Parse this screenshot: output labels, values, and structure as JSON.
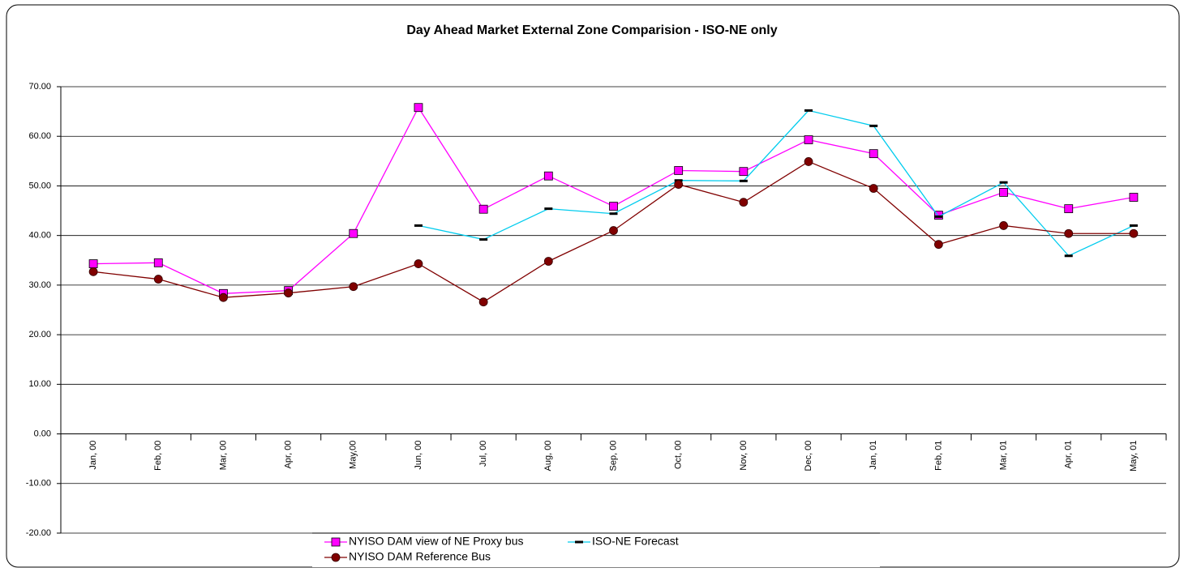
{
  "chart_data": {
    "type": "line",
    "title": "Day Ahead Market External Zone Comparision - ISO-NE only",
    "categories": [
      "Jan, 00",
      "Feb, 00",
      "Mar, 00",
      "Apr, 00",
      "May,00",
      "Jun, 00",
      "Jul, 00",
      "Aug, 00",
      "Sep, 00",
      "Oct, 00",
      "Nov, 00",
      "Dec, 00",
      "Jan, 01",
      "Feb, 01",
      "Mar, 01",
      "Apr, 01",
      "May, 01"
    ],
    "series": [
      {
        "name": "NYISO DAM view of NE Proxy bus",
        "color": "#ff00ff",
        "marker": "square",
        "values": [
          34.3,
          34.5,
          28.3,
          28.9,
          40.4,
          65.8,
          45.3,
          52.0,
          45.9,
          53.1,
          52.9,
          59.3,
          56.5,
          44.1,
          48.7,
          45.4,
          47.7
        ]
      },
      {
        "name": "ISO-NE Forecast",
        "color": "#00ccee",
        "marker": "dash",
        "values": [
          null,
          null,
          null,
          null,
          null,
          42.0,
          39.2,
          45.4,
          44.4,
          51.1,
          51.0,
          65.2,
          62.1,
          43.8,
          50.7,
          35.9,
          42.0
        ]
      },
      {
        "name": "NYISO DAM Reference Bus",
        "color": "#800000",
        "marker": "circle",
        "values": [
          32.7,
          31.2,
          27.5,
          28.4,
          29.7,
          34.3,
          26.6,
          34.8,
          41.0,
          50.3,
          46.7,
          54.9,
          49.5,
          38.2,
          42.0,
          40.4,
          40.4
        ]
      }
    ],
    "ylim": [
      -20,
      70
    ],
    "yticks": [
      {
        "value": -20,
        "label": "-20.00"
      },
      {
        "value": -10,
        "label": "-10.00"
      },
      {
        "value": 0,
        "label": "0.00"
      },
      {
        "value": 10,
        "label": "10.00"
      },
      {
        "value": 20,
        "label": "20.00"
      },
      {
        "value": 30,
        "label": "30.00"
      },
      {
        "value": 40,
        "label": "40.00"
      },
      {
        "value": 50,
        "label": "50.00"
      },
      {
        "value": 60,
        "label": "60.00"
      },
      {
        "value": 70,
        "label": "70.00"
      }
    ],
    "grid": true,
    "legend": "bottom"
  }
}
